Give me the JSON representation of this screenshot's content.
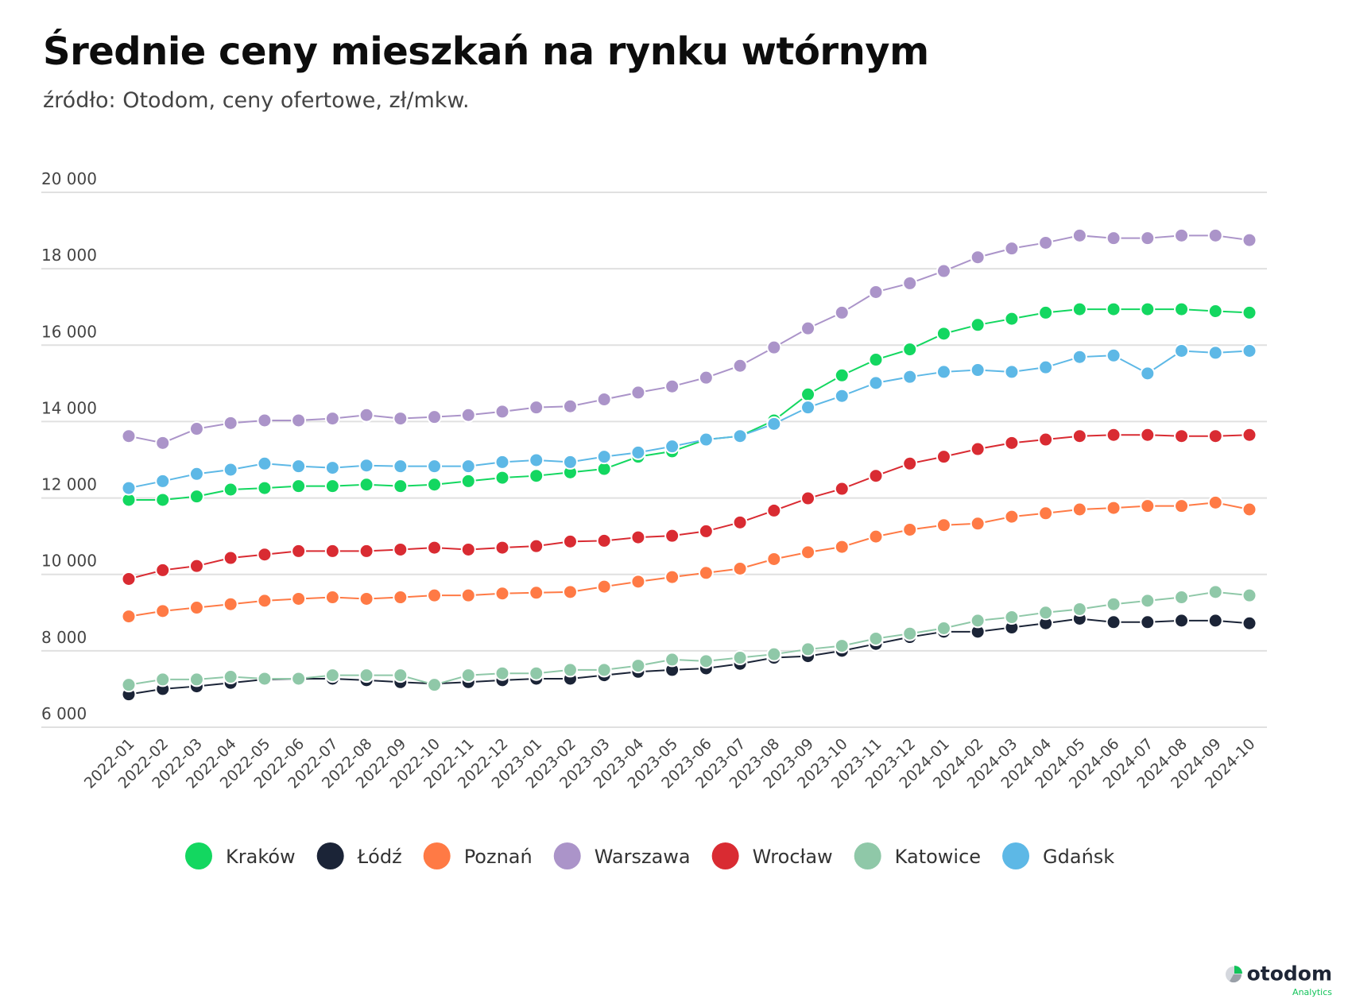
{
  "chart_data": {
    "type": "line",
    "title": "Średnie ceny mieszkań na rynku wtórnym",
    "subtitle": "źródło: Otodom, ceny ofertowe, zł/mkw.",
    "xlabel": "",
    "ylabel": "",
    "ylim": [
      6000,
      20000
    ],
    "yticks": [
      6000,
      8000,
      10000,
      12000,
      14000,
      16000,
      18000,
      20000
    ],
    "ytick_labels": [
      "6 000",
      "8 000",
      "10 000",
      "12 000",
      "14 000",
      "16 000",
      "18 000",
      "20 000"
    ],
    "grid": true,
    "legend_position": "bottom",
    "categories": [
      "2022-01",
      "2022-02",
      "2022-03",
      "2022-04",
      "2022-05",
      "2022-06",
      "2022-07",
      "2022-08",
      "2022-09",
      "2022-10",
      "2022-11",
      "2022-12",
      "2023-01",
      "2023-02",
      "2023-03",
      "2023-04",
      "2023-05",
      "2023-06",
      "2023-07",
      "2023-08",
      "2023-09",
      "2023-10",
      "2023-11",
      "2023-12",
      "2024-01",
      "2024-02",
      "2024-03",
      "2024-04",
      "2024-05",
      "2024-06",
      "2024-07",
      "2024-08",
      "2024-09",
      "2024-10"
    ],
    "series": [
      {
        "name": "Kraków",
        "color": "#13d760",
        "values": [
          11950,
          11950,
          12040,
          12220,
          12260,
          12310,
          12310,
          12350,
          12310,
          12350,
          12440,
          12530,
          12580,
          12670,
          12760,
          13080,
          13220,
          13530,
          13620,
          14030,
          14710,
          15210,
          15620,
          15890,
          16300,
          16530,
          16690,
          16850,
          16940,
          16940,
          16940,
          16940,
          16890,
          16850
        ]
      },
      {
        "name": "Łódź",
        "color": "#1b2437",
        "values": [
          6860,
          7000,
          7070,
          7160,
          7250,
          7270,
          7270,
          7230,
          7180,
          7140,
          7180,
          7230,
          7270,
          7270,
          7360,
          7450,
          7500,
          7540,
          7660,
          7820,
          7860,
          8000,
          8180,
          8360,
          8500,
          8500,
          8610,
          8720,
          8840,
          8750,
          8750,
          8790,
          8790,
          8720
        ]
      },
      {
        "name": "Poznań",
        "color": "#ff7a45",
        "values": [
          8900,
          9040,
          9130,
          9220,
          9310,
          9360,
          9400,
          9360,
          9400,
          9450,
          9450,
          9500,
          9520,
          9540,
          9680,
          9810,
          9930,
          10040,
          10150,
          10400,
          10580,
          10720,
          10990,
          11170,
          11290,
          11330,
          11510,
          11600,
          11700,
          11740,
          11790,
          11790,
          11880,
          11700
        ]
      },
      {
        "name": "Warszawa",
        "color": "#ab94c9",
        "values": [
          13620,
          13440,
          13810,
          13960,
          14030,
          14030,
          14080,
          14170,
          14080,
          14120,
          14170,
          14260,
          14370,
          14400,
          14580,
          14760,
          14920,
          15150,
          15460,
          15940,
          16440,
          16850,
          17390,
          17620,
          17940,
          18300,
          18530,
          18680,
          18870,
          18800,
          18800,
          18870,
          18870,
          18750
        ]
      },
      {
        "name": "Wrocław",
        "color": "#d92b32",
        "values": [
          9880,
          10110,
          10220,
          10430,
          10520,
          10610,
          10610,
          10610,
          10650,
          10700,
          10650,
          10700,
          10740,
          10860,
          10880,
          10970,
          11010,
          11130,
          11360,
          11670,
          11990,
          12240,
          12580,
          12900,
          13080,
          13280,
          13440,
          13530,
          13620,
          13650,
          13650,
          13620,
          13620,
          13650
        ]
      },
      {
        "name": "Katowice",
        "color": "#8fc8a8",
        "values": [
          7110,
          7250,
          7250,
          7320,
          7270,
          7270,
          7360,
          7360,
          7360,
          7110,
          7360,
          7410,
          7410,
          7500,
          7500,
          7610,
          7770,
          7730,
          7820,
          7910,
          8040,
          8130,
          8320,
          8450,
          8590,
          8790,
          8880,
          9000,
          9090,
          9220,
          9310,
          9400,
          9540,
          9450
        ]
      },
      {
        "name": "Gdańsk",
        "color": "#5db8e6",
        "values": [
          12260,
          12440,
          12630,
          12740,
          12900,
          12830,
          12790,
          12850,
          12830,
          12830,
          12830,
          12940,
          12990,
          12940,
          13080,
          13190,
          13350,
          13530,
          13620,
          13940,
          14370,
          14670,
          15010,
          15170,
          15300,
          15350,
          15300,
          15420,
          15690,
          15730,
          15260,
          15850,
          15800,
          15850
        ]
      }
    ]
  },
  "logo": {
    "word": "otodom",
    "sub": "Analytics"
  }
}
